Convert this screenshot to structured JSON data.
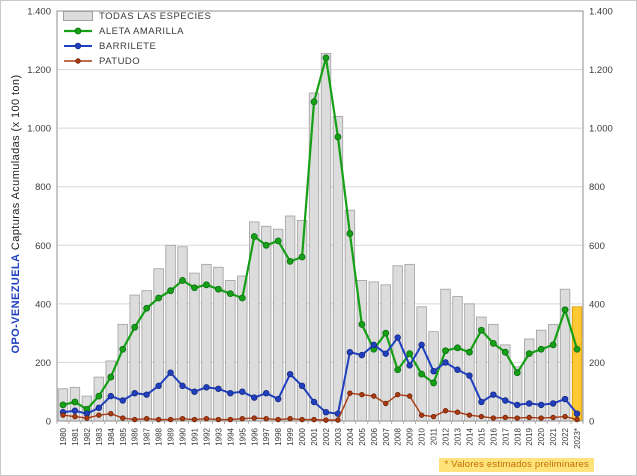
{
  "figure": {
    "y_axis_title_region": "OPO-VENEZUELA",
    "y_axis_title_rest": " Capturas  Acumuladas (x 100 ton)",
    "footnote": "* Valores estimados preliminares"
  },
  "colors": {
    "bar_fill": "#dcdcdc",
    "bar_border": "#a0a0a0",
    "highlight_fill": "#ffc835",
    "highlight_border": "#d89400",
    "green": "#15a015",
    "blue": "#2140c0",
    "red": "#ab3a12",
    "axis_text": "#3a3a3a",
    "grid": "#d8d8d8",
    "frame": "#8f8f8f",
    "footnote_text": "#c07000",
    "footnote_bg": "#ffe27a",
    "y_title_region": "#2140c0"
  },
  "chart_data": {
    "type": "bar",
    "combo": "bars with overlaid line series",
    "title": "",
    "xlabel": "",
    "ylabel": "OPO-VENEZUELA Capturas Acumuladas (x 100 ton)",
    "ylim": [
      0,
      1400
    ],
    "y_ticks": [
      0,
      200,
      400,
      600,
      800,
      1000,
      1200,
      1400
    ],
    "y_tick_labels": [
      "0",
      "200",
      "400",
      "600",
      "800",
      "1.000",
      "1.200",
      "1.400"
    ],
    "grid": "horizontal gridlines on, both-side y tick labels",
    "legend_position": "top-left inside plot",
    "categories": [
      "1980",
      "1981",
      "1982",
      "1983",
      "1984",
      "1985",
      "1986",
      "1987",
      "1988",
      "1989",
      "1990",
      "1991",
      "1992",
      "1993",
      "1994",
      "1995",
      "1996",
      "1997",
      "1998",
      "1999",
      "2000",
      "2001",
      "2002",
      "2003",
      "2004",
      "2005",
      "2006",
      "2007",
      "2008",
      "2009",
      "2010",
      "2011",
      "2012",
      "2013",
      "2014",
      "2015",
      "2016",
      "2017",
      "2018",
      "2019",
      "2020",
      "2021",
      "2022",
      "2023*"
    ],
    "series": [
      {
        "name": "TODAS LAS ESPECIES",
        "type": "bar",
        "color": "#dcdcdc",
        "border": "#a0a0a0",
        "values": [
          110,
          115,
          85,
          150,
          205,
          330,
          430,
          445,
          520,
          600,
          595,
          505,
          535,
          525,
          480,
          495,
          680,
          665,
          655,
          700,
          685,
          1120,
          1255,
          1040,
          720,
          480,
          475,
          465,
          530,
          535,
          390,
          305,
          450,
          425,
          400,
          355,
          330,
          260,
          185,
          280,
          310,
          330,
          450,
          390
        ]
      },
      {
        "name": "ALETA AMARILLA",
        "type": "line",
        "color": "#15a015",
        "dot_stroke": "#0c6e12",
        "values": [
          55,
          65,
          40,
          85,
          150,
          245,
          320,
          385,
          420,
          445,
          480,
          455,
          465,
          450,
          435,
          420,
          630,
          600,
          615,
          545,
          560,
          1090,
          1240,
          970,
          640,
          330,
          245,
          300,
          175,
          230,
          160,
          130,
          240,
          250,
          235,
          310,
          265,
          235,
          165,
          230,
          245,
          260,
          380,
          245
        ]
      },
      {
        "name": "BARRILETE",
        "type": "line",
        "color": "#2140c0",
        "dot_stroke": "#16287f",
        "values": [
          30,
          35,
          25,
          45,
          85,
          70,
          95,
          90,
          120,
          165,
          120,
          100,
          115,
          110,
          95,
          100,
          80,
          95,
          75,
          160,
          120,
          65,
          30,
          25,
          235,
          225,
          260,
          230,
          285,
          190,
          260,
          170,
          200,
          175,
          155,
          65,
          90,
          70,
          55,
          60,
          55,
          60,
          75,
          25
        ]
      },
      {
        "name": "PATUDO",
        "type": "line",
        "color": "#ab3a12",
        "dot_stroke": "#6e2408",
        "values": [
          20,
          15,
          10,
          20,
          25,
          10,
          5,
          8,
          5,
          5,
          8,
          5,
          8,
          5,
          5,
          8,
          10,
          8,
          5,
          8,
          5,
          5,
          3,
          3,
          95,
          90,
          85,
          60,
          90,
          85,
          20,
          15,
          35,
          30,
          20,
          15,
          10,
          12,
          10,
          12,
          10,
          12,
          15,
          5
        ]
      }
    ],
    "highlight": {
      "category": "2023*",
      "fill": "#ffc835",
      "border": "#d89400",
      "meaning": "* Valores estimados preliminares"
    }
  }
}
